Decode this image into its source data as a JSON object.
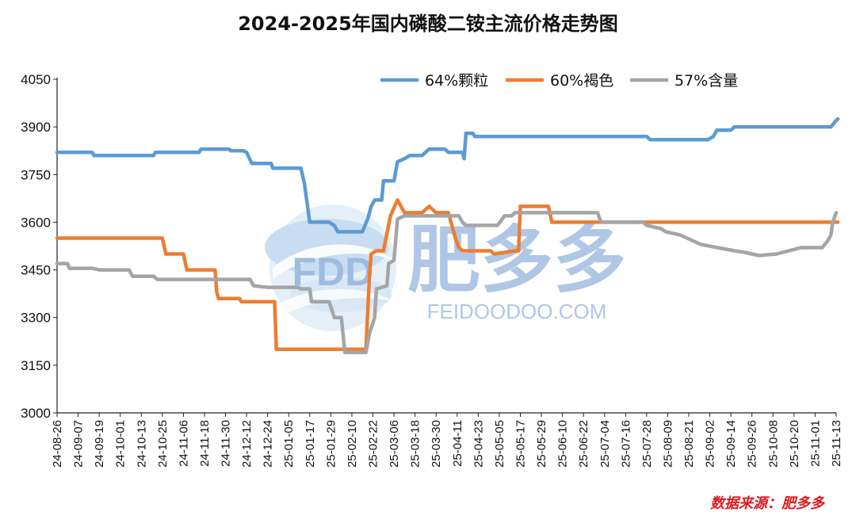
{
  "chart_data": {
    "type": "line",
    "title": "2024-2025年国内磷酸二铵主流价格走势图",
    "xlabel": "",
    "ylabel": "",
    "ylim": [
      3000,
      4050
    ],
    "yticks": [
      3000,
      3150,
      3300,
      3450,
      3600,
      3750,
      3900,
      4050
    ],
    "xticks": [
      "24-08-26",
      "24-09-07",
      "24-09-19",
      "24-10-01",
      "24-10-13",
      "24-10-25",
      "24-11-06",
      "24-11-18",
      "24-11-30",
      "24-12-12",
      "24-12-24",
      "25-01-05",
      "25-01-17",
      "25-01-29",
      "25-02-10",
      "25-02-22",
      "25-03-06",
      "25-03-18",
      "25-03-30",
      "25-04-11",
      "25-04-23",
      "25-05-05",
      "25-05-17",
      "25-05-29",
      "25-06-10",
      "25-06-22",
      "25-07-04",
      "25-07-16",
      "25-07-28",
      "25-08-09",
      "25-08-21",
      "25-09-02",
      "25-09-14",
      "25-09-26",
      "25-10-08",
      "25-10-20",
      "25-11-01",
      "25-11-13"
    ],
    "grid": false,
    "legend_position": "top-right",
    "series": [
      {
        "name": "64%颗粒",
        "color": "#5B9BD5",
        "points": [
          [
            "24-08-26",
            3820
          ],
          [
            "24-09-15",
            3820
          ],
          [
            "24-09-16",
            3810
          ],
          [
            "24-10-20",
            3810
          ],
          [
            "24-10-21",
            3820
          ],
          [
            "24-11-15",
            3820
          ],
          [
            "24-11-16",
            3830
          ],
          [
            "24-12-02",
            3830
          ],
          [
            "24-12-03",
            3825
          ],
          [
            "24-12-10",
            3825
          ],
          [
            "24-12-12",
            3820
          ],
          [
            "24-12-15",
            3785
          ],
          [
            "24-12-26",
            3785
          ],
          [
            "24-12-27",
            3770
          ],
          [
            "25-01-12",
            3770
          ],
          [
            "25-01-14",
            3720
          ],
          [
            "25-01-17",
            3600
          ],
          [
            "25-01-28",
            3600
          ],
          [
            "25-01-31",
            3590
          ],
          [
            "25-02-02",
            3570
          ],
          [
            "25-02-16",
            3570
          ],
          [
            "25-02-19",
            3610
          ],
          [
            "25-02-21",
            3650
          ],
          [
            "25-02-23",
            3670
          ],
          [
            "25-02-27",
            3670
          ],
          [
            "25-02-28",
            3730
          ],
          [
            "25-03-06",
            3730
          ],
          [
            "25-03-08",
            3790
          ],
          [
            "25-03-12",
            3800
          ],
          [
            "25-03-15",
            3810
          ],
          [
            "25-03-22",
            3810
          ],
          [
            "25-03-26",
            3830
          ],
          [
            "25-04-04",
            3830
          ],
          [
            "25-04-06",
            3820
          ],
          [
            "25-04-14",
            3820
          ],
          [
            "25-04-15",
            3800
          ],
          [
            "25-04-16",
            3880
          ],
          [
            "25-04-20",
            3880
          ],
          [
            "25-04-21",
            3870
          ],
          [
            "25-07-28",
            3870
          ],
          [
            "25-07-30",
            3860
          ],
          [
            "25-09-01",
            3860
          ],
          [
            "25-09-04",
            3870
          ],
          [
            "25-09-06",
            3890
          ],
          [
            "25-09-14",
            3890
          ],
          [
            "25-09-16",
            3900
          ],
          [
            "25-11-10",
            3900
          ],
          [
            "25-11-13",
            3920
          ],
          [
            "25-11-14",
            3925
          ]
        ]
      },
      {
        "name": "60%褐色",
        "color": "#ED7D31",
        "points": [
          [
            "24-08-26",
            3550
          ],
          [
            "24-10-25",
            3550
          ],
          [
            "24-10-27",
            3500
          ],
          [
            "24-11-06",
            3500
          ],
          [
            "24-11-08",
            3450
          ],
          [
            "24-11-24",
            3450
          ],
          [
            "24-11-25",
            3380
          ],
          [
            "24-11-26",
            3360
          ],
          [
            "24-12-08",
            3360
          ],
          [
            "24-12-09",
            3350
          ],
          [
            "24-12-28",
            3350
          ],
          [
            "24-12-29",
            3200
          ],
          [
            "25-02-18",
            3200
          ],
          [
            "25-02-20",
            3430
          ],
          [
            "25-02-21",
            3500
          ],
          [
            "25-02-24",
            3510
          ],
          [
            "25-02-28",
            3510
          ],
          [
            "25-03-04",
            3620
          ],
          [
            "25-03-08",
            3670
          ],
          [
            "25-03-12",
            3630
          ],
          [
            "25-03-22",
            3630
          ],
          [
            "25-03-26",
            3650
          ],
          [
            "25-03-30",
            3630
          ],
          [
            "25-04-06",
            3630
          ],
          [
            "25-04-10",
            3550
          ],
          [
            "25-04-12",
            3520
          ],
          [
            "25-04-14",
            3510
          ],
          [
            "25-04-30",
            3510
          ],
          [
            "25-05-02",
            3500
          ],
          [
            "25-05-14",
            3510
          ],
          [
            "25-05-16",
            3510
          ],
          [
            "25-05-17",
            3650
          ],
          [
            "25-06-02",
            3650
          ],
          [
            "25-06-04",
            3600
          ],
          [
            "25-11-14",
            3600
          ]
        ]
      },
      {
        "name": "57%含量",
        "color": "#A5A5A5",
        "points": [
          [
            "24-08-26",
            3470
          ],
          [
            "24-09-01",
            3470
          ],
          [
            "24-09-02",
            3455
          ],
          [
            "24-09-15",
            3455
          ],
          [
            "24-09-19",
            3450
          ],
          [
            "24-10-06",
            3450
          ],
          [
            "24-10-08",
            3430
          ],
          [
            "24-10-20",
            3430
          ],
          [
            "24-10-22",
            3420
          ],
          [
            "24-12-14",
            3420
          ],
          [
            "24-12-16",
            3400
          ],
          [
            "24-12-24",
            3395
          ],
          [
            "25-01-10",
            3395
          ],
          [
            "25-01-12",
            3390
          ],
          [
            "25-01-17",
            3390
          ],
          [
            "25-01-18",
            3350
          ],
          [
            "25-01-28",
            3350
          ],
          [
            "25-01-31",
            3300
          ],
          [
            "25-02-04",
            3300
          ],
          [
            "25-02-06",
            3190
          ],
          [
            "25-02-18",
            3190
          ],
          [
            "25-02-20",
            3250
          ],
          [
            "25-02-23",
            3300
          ],
          [
            "25-02-24",
            3390
          ],
          [
            "25-03-02",
            3400
          ],
          [
            "25-03-03",
            3470
          ],
          [
            "25-03-06",
            3480
          ],
          [
            "25-03-08",
            3610
          ],
          [
            "25-03-12",
            3620
          ],
          [
            "25-04-12",
            3620
          ],
          [
            "25-04-14",
            3600
          ],
          [
            "25-04-16",
            3590
          ],
          [
            "25-05-04",
            3590
          ],
          [
            "25-05-08",
            3620
          ],
          [
            "25-05-12",
            3620
          ],
          [
            "25-05-14",
            3630
          ],
          [
            "25-06-30",
            3630
          ],
          [
            "25-07-02",
            3600
          ],
          [
            "25-07-26",
            3600
          ],
          [
            "25-07-28",
            3590
          ],
          [
            "25-08-05",
            3580
          ],
          [
            "25-08-08",
            3570
          ],
          [
            "25-08-16",
            3560
          ],
          [
            "25-08-20",
            3550
          ],
          [
            "25-08-28",
            3530
          ],
          [
            "25-09-16",
            3510
          ],
          [
            "25-09-22",
            3505
          ],
          [
            "25-09-30",
            3495
          ],
          [
            "25-10-10",
            3500
          ],
          [
            "25-10-24",
            3520
          ],
          [
            "25-11-05",
            3520
          ],
          [
            "25-11-08",
            3540
          ],
          [
            "25-11-10",
            3560
          ],
          [
            "25-11-11",
            3600
          ],
          [
            "25-11-13",
            3630
          ]
        ]
      }
    ],
    "watermark": {
      "logo_text": "FDD",
      "brand_text": "肥多多",
      "domain_text": "FEIDOODOO.COM"
    },
    "source": "数据来源：肥多多"
  }
}
